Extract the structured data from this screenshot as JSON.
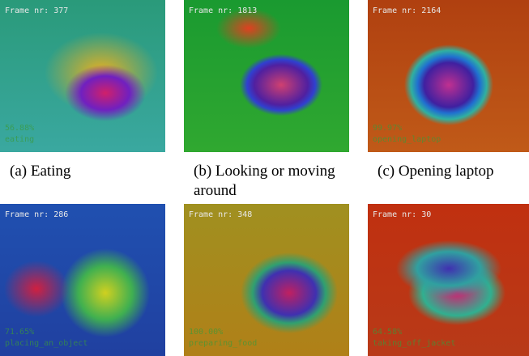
{
  "panels": [
    {
      "frame": "Frame nr: 377",
      "score": "56.88%",
      "activity": "eating",
      "caption": "(a) Eating"
    },
    {
      "frame": "Frame nr: 1813",
      "caption": "(b) Looking or moving around"
    },
    {
      "frame": "Frame nr: 2164",
      "score": "99.97%",
      "activity": "opening_laptop",
      "caption": "(c) Opening laptop"
    },
    {
      "frame": "Frame nr: 286",
      "score": "71.65%",
      "activity": "placing_an_object"
    },
    {
      "frame": "Frame nr: 348",
      "score": "100.00%",
      "activity": "preparing_food"
    },
    {
      "frame": "Frame nr: 30",
      "score": "64.58%",
      "activity": "taking_off_jacket"
    }
  ]
}
